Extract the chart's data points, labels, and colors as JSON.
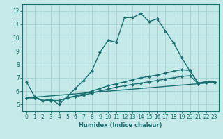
{
  "xlabel": "Humidex (Indice chaleur)",
  "xlim": [
    -0.5,
    23.5
  ],
  "ylim": [
    4.5,
    12.5
  ],
  "yticks": [
    5,
    6,
    7,
    8,
    9,
    10,
    11,
    12
  ],
  "xticks": [
    0,
    1,
    2,
    3,
    4,
    5,
    6,
    7,
    8,
    9,
    10,
    11,
    12,
    13,
    14,
    15,
    16,
    17,
    18,
    19,
    20,
    21,
    22,
    23
  ],
  "bg_color": "#c5e8e8",
  "line_color": "#1a7070",
  "grid_color": "#9ecece",
  "lines": [
    {
      "x": [
        0,
        1,
        2,
        3,
        4,
        5,
        6,
        7,
        8,
        9,
        10,
        11,
        12,
        13,
        14,
        15,
        16,
        17,
        18,
        19,
        20,
        21,
        22,
        23
      ],
      "y": [
        6.7,
        5.6,
        5.3,
        5.4,
        5.0,
        5.6,
        6.2,
        6.8,
        7.5,
        8.9,
        9.8,
        9.65,
        11.5,
        11.5,
        11.8,
        11.2,
        11.4,
        10.5,
        9.6,
        8.5,
        7.5,
        6.6,
        6.7,
        6.7
      ],
      "marker": "D",
      "ms": 2.0,
      "lw": 1.0
    },
    {
      "x": [
        0,
        1,
        2,
        3,
        4,
        5,
        6,
        7,
        8,
        9,
        10,
        11,
        12,
        13,
        14,
        15,
        16,
        17,
        18,
        19,
        20,
        21,
        22,
        23
      ],
      "y": [
        5.5,
        5.5,
        5.3,
        5.3,
        5.3,
        5.5,
        5.65,
        5.8,
        6.0,
        6.2,
        6.4,
        6.55,
        6.7,
        6.85,
        7.0,
        7.1,
        7.2,
        7.35,
        7.5,
        7.6,
        7.55,
        6.6,
        6.7,
        6.7
      ],
      "marker": "D",
      "ms": 2.0,
      "lw": 1.0
    },
    {
      "x": [
        0,
        1,
        2,
        3,
        4,
        5,
        6,
        7,
        8,
        9,
        10,
        11,
        12,
        13,
        14,
        15,
        16,
        17,
        18,
        19,
        20,
        21,
        22,
        23
      ],
      "y": [
        5.5,
        5.5,
        5.3,
        5.3,
        5.3,
        5.5,
        5.6,
        5.7,
        5.85,
        6.0,
        6.15,
        6.3,
        6.4,
        6.5,
        6.6,
        6.7,
        6.8,
        6.9,
        7.0,
        7.1,
        7.15,
        6.55,
        6.65,
        6.65
      ],
      "marker": "D",
      "ms": 2.0,
      "lw": 1.0
    },
    {
      "x": [
        0,
        23
      ],
      "y": [
        5.5,
        6.65
      ],
      "marker": null,
      "ms": 0,
      "lw": 1.0
    }
  ]
}
